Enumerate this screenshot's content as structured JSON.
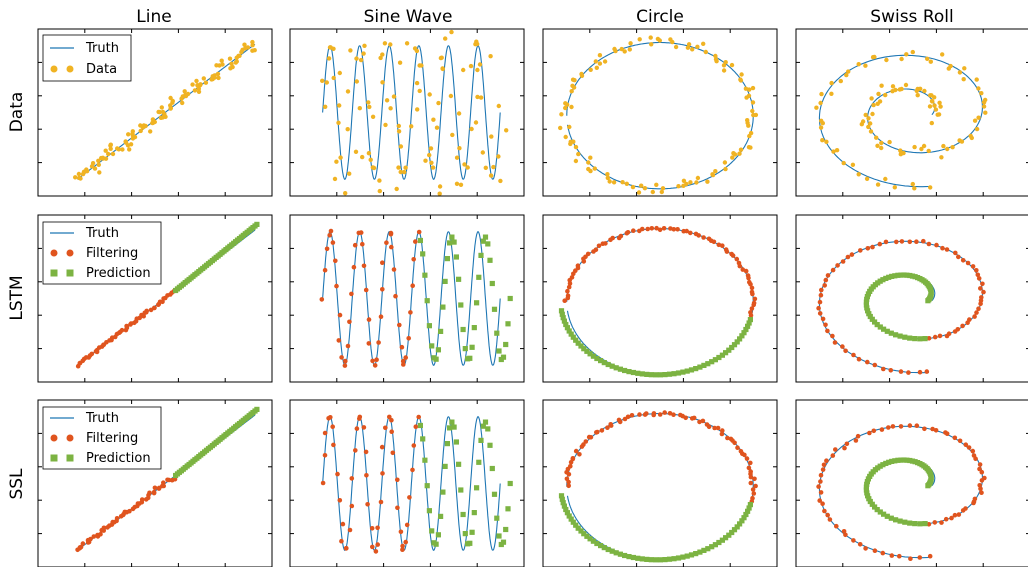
{
  "figure": {
    "column_titles": [
      "Line",
      "Sine Wave",
      "Circle",
      "Swiss Roll"
    ],
    "row_labels": [
      "Data",
      "LSTM",
      "SSL"
    ],
    "legends": {
      "data": [
        "Truth",
        "Data"
      ],
      "model": [
        "Truth",
        "Filtering",
        "Prediction"
      ]
    }
  },
  "colors": {
    "truth": "#1f77b4",
    "data": "#f0b323",
    "filtering": "#e0541e",
    "prediction": "#7cb342"
  },
  "chart_data": [
    {
      "type": "line",
      "row": "Data",
      "column": "Line",
      "series": [
        {
          "name": "Truth",
          "kind": "line"
        },
        {
          "name": "Data",
          "kind": "scatter"
        }
      ],
      "truth": {
        "x": [
          0,
          1
        ],
        "y": [
          0,
          1
        ]
      },
      "noise": 0.06,
      "points": 110
    },
    {
      "type": "line",
      "row": "Data",
      "column": "Sine Wave",
      "series": [
        {
          "name": "Truth",
          "kind": "line"
        },
        {
          "name": "Data",
          "kind": "scatter"
        }
      ],
      "truth": {
        "periods": 6
      },
      "points": 110
    },
    {
      "type": "line",
      "row": "Data",
      "column": "Circle",
      "series": [
        {
          "name": "Truth",
          "kind": "line"
        },
        {
          "name": "Data",
          "kind": "scatter"
        }
      ],
      "truth": {
        "shape": "ellipse"
      },
      "points": 110
    },
    {
      "type": "line",
      "row": "Data",
      "column": "Swiss Roll",
      "series": [
        {
          "name": "Truth",
          "kind": "line"
        },
        {
          "name": "Data",
          "kind": "scatter"
        }
      ],
      "truth": {
        "shape": "spiral",
        "turns": 1.8
      },
      "points": 110
    },
    {
      "type": "line",
      "row": "LSTM",
      "column": "Line",
      "series": [
        {
          "name": "Truth"
        },
        {
          "name": "Filtering"
        },
        {
          "name": "Prediction"
        }
      ],
      "split": 0.55
    },
    {
      "type": "line",
      "row": "LSTM",
      "column": "Sine Wave",
      "series": [
        {
          "name": "Truth"
        },
        {
          "name": "Filtering"
        },
        {
          "name": "Prediction"
        }
      ],
      "split": 0.55
    },
    {
      "type": "line",
      "row": "LSTM",
      "column": "Circle",
      "series": [
        {
          "name": "Truth"
        },
        {
          "name": "Filtering"
        },
        {
          "name": "Prediction"
        }
      ],
      "split": 0.55
    },
    {
      "type": "line",
      "row": "LSTM",
      "column": "Swiss Roll",
      "series": [
        {
          "name": "Truth"
        },
        {
          "name": "Filtering"
        },
        {
          "name": "Prediction"
        }
      ],
      "split": 0.55
    },
    {
      "type": "line",
      "row": "SSL",
      "column": "Line",
      "series": [
        {
          "name": "Truth"
        },
        {
          "name": "Filtering"
        },
        {
          "name": "Prediction"
        }
      ],
      "split": 0.55
    },
    {
      "type": "line",
      "row": "SSL",
      "column": "Sine Wave",
      "series": [
        {
          "name": "Truth"
        },
        {
          "name": "Filtering"
        },
        {
          "name": "Prediction"
        }
      ],
      "split": 0.55
    },
    {
      "type": "line",
      "row": "SSL",
      "column": "Circle",
      "series": [
        {
          "name": "Truth"
        },
        {
          "name": "Filtering"
        },
        {
          "name": "Prediction"
        }
      ],
      "split": 0.55
    },
    {
      "type": "line",
      "row": "SSL",
      "column": "Swiss Roll",
      "series": [
        {
          "name": "Truth"
        },
        {
          "name": "Filtering"
        },
        {
          "name": "Prediction"
        }
      ],
      "split": 0.55
    }
  ]
}
